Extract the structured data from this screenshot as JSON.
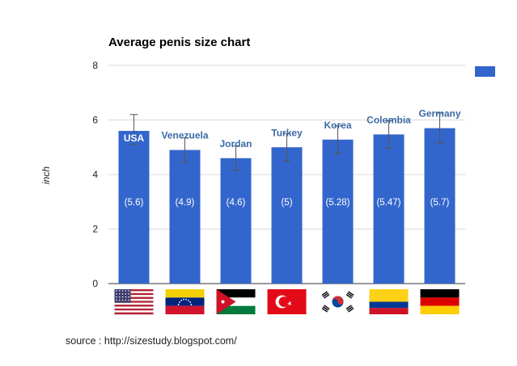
{
  "chart_data": {
    "type": "bar",
    "title": "Average penis size chart",
    "ylabel": "inch",
    "xlabel": "",
    "ylim": [
      0,
      8
    ],
    "yticks": [
      "0",
      "2",
      "4",
      "6",
      "8"
    ],
    "grid": true,
    "legend_position": "top-right",
    "categories": [
      "USA",
      "Venezuela",
      "Jordan",
      "Turkey",
      "Korea",
      "Colombia",
      "Germany"
    ],
    "values": [
      5.6,
      4.9,
      4.6,
      5,
      5.28,
      5.47,
      5.7
    ],
    "data_labels": [
      "(5.6)",
      "(4.9)",
      "(4.6)",
      "(5)",
      "(5.28)",
      "(5.47)",
      "(5.7)"
    ],
    "error_bars": [
      [
        5.1,
        6.2
      ],
      [
        4.45,
        5.35
      ],
      [
        4.15,
        5.05
      ],
      [
        4.5,
        5.5
      ],
      [
        4.78,
        5.78
      ],
      [
        4.97,
        5.97
      ],
      [
        5.15,
        6.25
      ]
    ],
    "flags": [
      "usa-flag",
      "venezuela-flag",
      "jordan-flag",
      "turkey-flag",
      "korea-flag",
      "colombia-flag",
      "germany-flag"
    ],
    "colors": {
      "bar": "#3366cc",
      "category_label": "#3b6aa5",
      "data_label": "#ffffff",
      "grid": "#d9d9d9",
      "error_bar": "#555555",
      "legend_swatch": "#3366cc"
    }
  },
  "source": "source : http://sizestudy.blogspot.com/"
}
